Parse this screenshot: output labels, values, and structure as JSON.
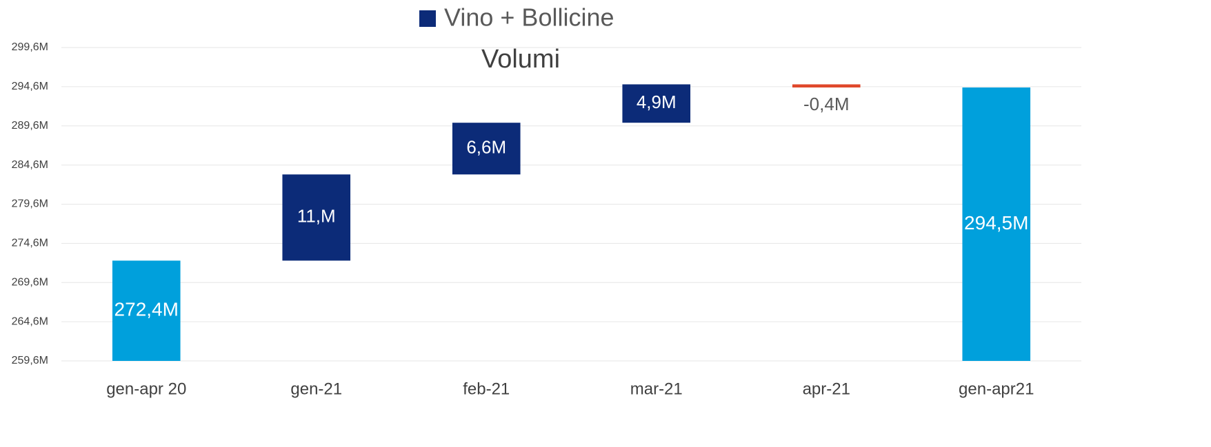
{
  "chart_data": {
    "type": "waterfall",
    "title": "Volumi",
    "categories": [
      "gen-apr 20",
      "gen-21",
      "feb-21",
      "mar-21",
      "apr-21",
      "gen-apr21"
    ],
    "series": [
      {
        "name": "Vino + Bollicine",
        "color": "#0c2b78",
        "values": [
          272.4,
          11,
          6.6,
          4.9,
          -0.4,
          294.5
        ],
        "value_labels": [
          "272,4M",
          "11,M",
          "6,6M",
          "4,9M",
          "-0,4M",
          "294,5M"
        ],
        "totals": [
          true,
          false,
          false,
          false,
          false,
          true
        ]
      }
    ],
    "colors": {
      "total": "#00a0dc",
      "increase": "#0c2b78",
      "decrease": "#e0482b"
    },
    "ylim": [
      259.6,
      299.6
    ],
    "yticks": [
      {
        "value": 259.6,
        "label": "259,6M"
      },
      {
        "value": 264.6,
        "label": "264,6M"
      },
      {
        "value": 269.6,
        "label": "269,6M"
      },
      {
        "value": 274.6,
        "label": "274,6M"
      },
      {
        "value": 279.6,
        "label": "279,6M"
      },
      {
        "value": 284.6,
        "label": "284,6M"
      },
      {
        "value": 289.6,
        "label": "289,6M"
      },
      {
        "value": 294.6,
        "label": "294,6M"
      },
      {
        "value": 299.6,
        "label": "299,6M"
      }
    ],
    "grid": true,
    "legend": "top"
  }
}
